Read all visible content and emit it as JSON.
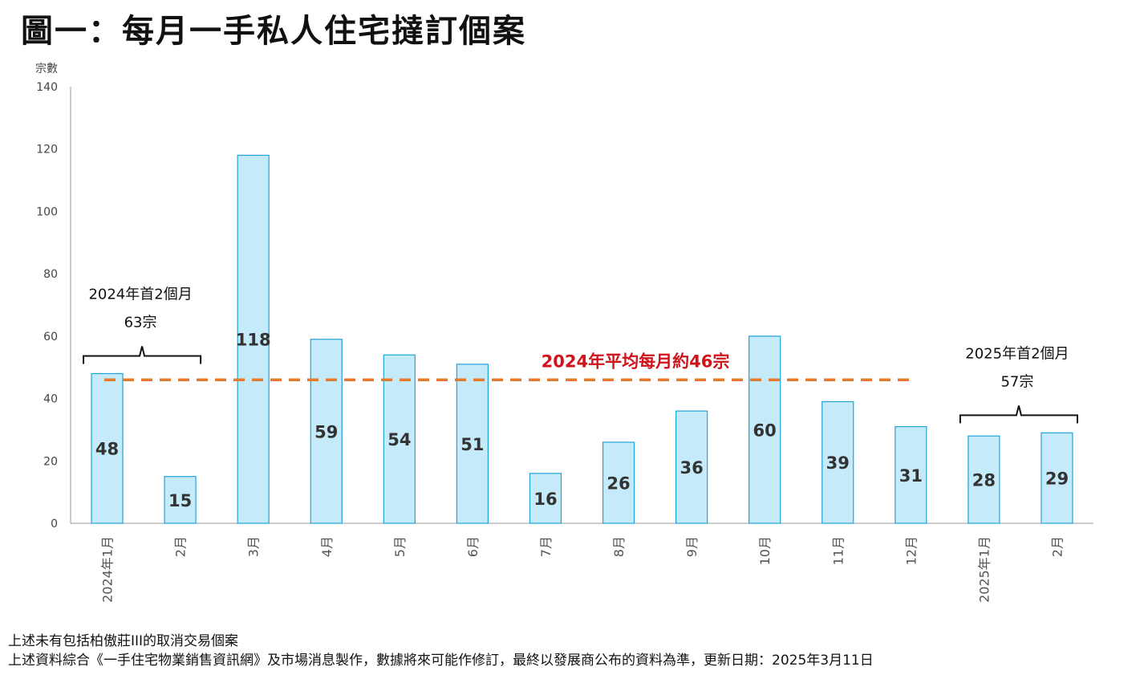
{
  "title": "圖一：每月一手私人住宅撻訂個案",
  "chart_data": {
    "type": "bar",
    "ylabel": "宗數",
    "xlabel": "",
    "ylim": [
      0,
      140
    ],
    "yticks": [
      0,
      20,
      40,
      60,
      80,
      100,
      120,
      140
    ],
    "grid": false,
    "categories": [
      "2024年1月",
      "2月",
      "3月",
      "4月",
      "5月",
      "6月",
      "7月",
      "8月",
      "9月",
      "10月",
      "11月",
      "12月",
      "2025年1月",
      "2月"
    ],
    "values": [
      48,
      15,
      118,
      59,
      54,
      51,
      16,
      26,
      36,
      60,
      39,
      31,
      28,
      29
    ],
    "bar_fill": "#c5eaf9",
    "bar_stroke": "#1fa3d9",
    "average": {
      "value": 46,
      "label": "2024年平均每月約46宗",
      "color": "#e57a2e",
      "label_color": "#d0121b"
    },
    "annotations": [
      {
        "line1": "2024年首2個月",
        "line2": "63宗",
        "from_index": 0,
        "to_index": 1
      },
      {
        "line1": "2025年首2個月",
        "line2": "57宗",
        "from_index": 12,
        "to_index": 13
      }
    ]
  },
  "notes": [
    "上述未有包括柏傲莊III的取消交易個案",
    "上述資料綜合《一手住宅物業銷售資訊網》及市場消息製作，數據將來可能作修訂，最終以發展商公布的資料為準，更新日期：2025年3月11日"
  ]
}
